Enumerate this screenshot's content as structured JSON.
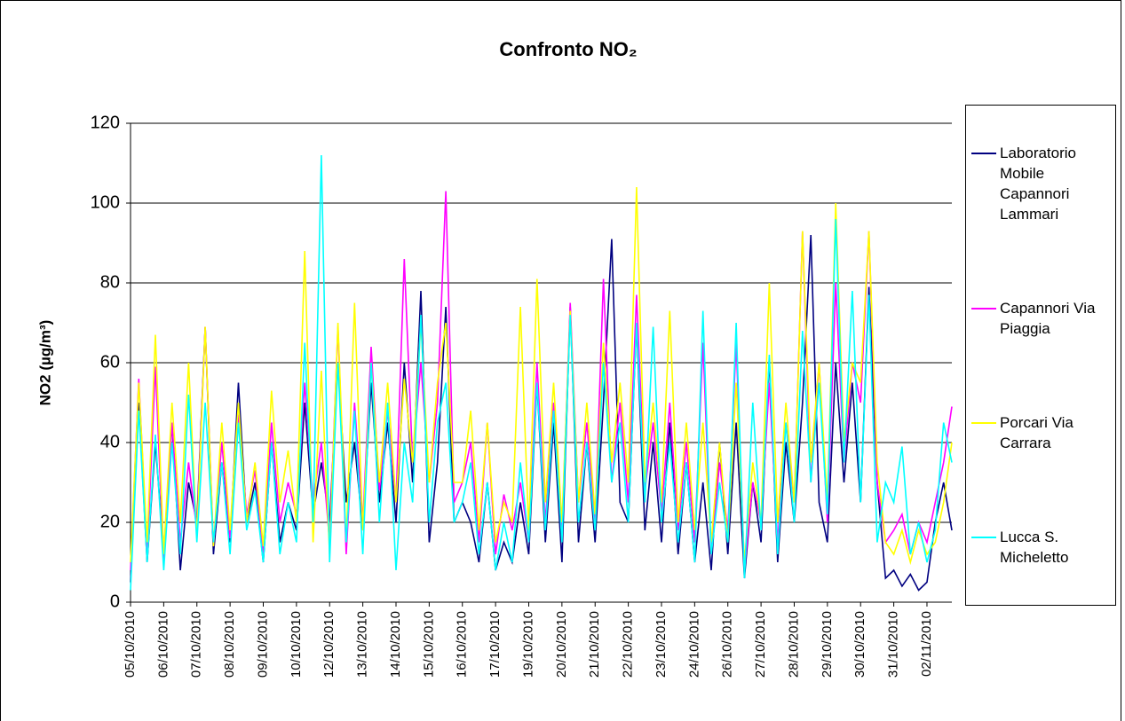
{
  "chart_data": {
    "type": "line",
    "title": "Confronto NO₂",
    "y_label": "NO2 (µg/m³)",
    "categories": [
      "05/10/2010",
      null,
      null,
      null,
      "06/10/2010",
      null,
      null,
      null,
      "07/10/2010",
      null,
      null,
      null,
      "08/10/2010",
      null,
      null,
      null,
      "09/10/2010",
      null,
      null,
      null,
      "10/10/2010",
      null,
      null,
      null,
      "12/10/2010",
      null,
      null,
      null,
      "13/10/2010",
      null,
      null,
      null,
      "14/10/2010",
      null,
      null,
      null,
      "15/10/2010",
      null,
      null,
      null,
      "16/10/2010",
      null,
      null,
      null,
      "17/10/2010",
      null,
      null,
      null,
      "19/10/2010",
      null,
      null,
      null,
      "20/10/2010",
      null,
      null,
      null,
      "21/10/2010",
      null,
      null,
      null,
      "22/10/2010",
      null,
      null,
      null,
      "23/10/2010",
      null,
      null,
      null,
      "24/10/2010",
      null,
      null,
      null,
      "26/10/2010",
      null,
      null,
      null,
      "27/10/2010",
      null,
      null,
      null,
      "28/10/2010",
      null,
      null,
      null,
      "29/10/2010",
      null,
      null,
      null,
      "30/10/2010",
      null,
      null,
      null,
      "31/10/2010",
      null,
      null,
      null,
      "02/11/2010",
      null,
      null,
      null
    ],
    "series": [
      {
        "name": "Laboratorio Mobile Capannori Lammari",
        "color": "#000080",
        "values": [
          5,
          50,
          10,
          40,
          12,
          45,
          8,
          30,
          20,
          69,
          12,
          35,
          15,
          55,
          20,
          30,
          10,
          40,
          15,
          25,
          18,
          50,
          22,
          35,
          20,
          60,
          25,
          40,
          18,
          55,
          25,
          45,
          20,
          60,
          30,
          78,
          15,
          35,
          74,
          20,
          25,
          20,
          10,
          30,
          8,
          15,
          10,
          25,
          12,
          55,
          15,
          45,
          10,
          74,
          15,
          40,
          15,
          50,
          91,
          25,
          20,
          70,
          18,
          40,
          15,
          45,
          12,
          35,
          10,
          30,
          8,
          40,
          12,
          45,
          6,
          30,
          15,
          61,
          10,
          40,
          20,
          50,
          92,
          25,
          15,
          60,
          30,
          55,
          25,
          79,
          30,
          6,
          8,
          4,
          7,
          3,
          5,
          20,
          30,
          18
        ]
      },
      {
        "name": "Capannori Via Piaggia",
        "color": "#ff00ff",
        "values": [
          8,
          56,
          12,
          59,
          10,
          45,
          15,
          35,
          18,
          69,
          14,
          40,
          16,
          47,
          22,
          33,
          12,
          45,
          20,
          30,
          22,
          55,
          25,
          40,
          15,
          69,
          12,
          50,
          20,
          64,
          28,
          48,
          25,
          86,
          35,
          60,
          30,
          50,
          103,
          25,
          30,
          40,
          15,
          45,
          12,
          27,
          18,
          30,
          15,
          60,
          20,
          50,
          18,
          75,
          25,
          45,
          20,
          81,
          30,
          50,
          25,
          77,
          28,
          45,
          22,
          50,
          18,
          40,
          15,
          65,
          12,
          35,
          18,
          65,
          8,
          30,
          20,
          55,
          15,
          45,
          25,
          93,
          30,
          60,
          20,
          80,
          35,
          60,
          50,
          93,
          30,
          15,
          18,
          22,
          12,
          20,
          15,
          25,
          35,
          49
        ]
      },
      {
        "name": "Porcari Via Carrara",
        "color": "#ffff00",
        "values": [
          10,
          55,
          15,
          67,
          12,
          50,
          20,
          60,
          16,
          69,
          14,
          45,
          18,
          50,
          20,
          35,
          14,
          53,
          25,
          38,
          20,
          88,
          15,
          58,
          12,
          70,
          15,
          75,
          18,
          60,
          30,
          55,
          25,
          56,
          35,
          70,
          30,
          55,
          70,
          30,
          30,
          48,
          18,
          45,
          15,
          25,
          20,
          74,
          18,
          81,
          25,
          55,
          20,
          73,
          25,
          50,
          22,
          65,
          35,
          55,
          30,
          104,
          30,
          50,
          25,
          73,
          20,
          45,
          18,
          45,
          15,
          40,
          15,
          55,
          10,
          35,
          20,
          80,
          20,
          50,
          25,
          93,
          35,
          60,
          25,
          100,
          40,
          60,
          55,
          93,
          35,
          15,
          12,
          18,
          10,
          18,
          12,
          15,
          25,
          40
        ]
      },
      {
        "name": "Lucca S. Micheletto",
        "color": "#00ffff",
        "values": [
          3,
          48,
          10,
          42,
          8,
          40,
          12,
          52,
          15,
          50,
          15,
          35,
          12,
          45,
          18,
          28,
          10,
          40,
          12,
          25,
          15,
          65,
          20,
          112,
          10,
          60,
          15,
          48,
          12,
          60,
          20,
          50,
          8,
          40,
          25,
          72,
          20,
          45,
          55,
          20,
          25,
          35,
          12,
          30,
          8,
          20,
          10,
          35,
          15,
          55,
          18,
          48,
          15,
          72,
          20,
          40,
          18,
          60,
          30,
          45,
          20,
          70,
          25,
          69,
          20,
          40,
          15,
          35,
          10,
          73,
          12,
          30,
          15,
          70,
          6,
          50,
          18,
          62,
          12,
          45,
          20,
          68,
          30,
          55,
          22,
          96,
          35,
          78,
          25,
          77,
          15,
          30,
          25,
          39,
          12,
          20,
          10,
          18,
          45,
          35
        ]
      }
    ],
    "ylim": [
      0,
      120
    ],
    "yticks": [
      0,
      20,
      40,
      60,
      80,
      100,
      120
    ],
    "grid": true
  }
}
